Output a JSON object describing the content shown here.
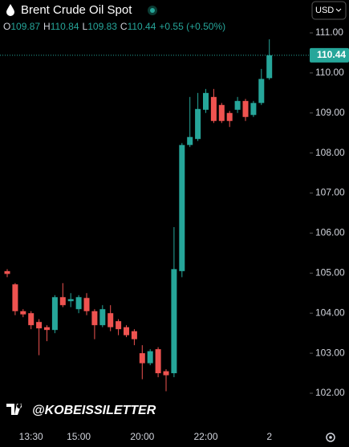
{
  "chart_data": {
    "type": "candlestick",
    "title": "Brent Crude Oil Spot",
    "currency": "USD",
    "ohlc_labels": [
      "O",
      "H",
      "L",
      "C"
    ],
    "change": "+0.55 (+0.50%)",
    "watermark": "@KOBEISSILETTER",
    "up_color": "#26a69a",
    "down_color": "#ef5350",
    "categories": [
      null,
      null,
      null,
      "13:30",
      null,
      null,
      null,
      null,
      null,
      "15:00",
      null,
      null,
      null,
      null,
      null,
      null,
      null,
      "20:00",
      null,
      null,
      null,
      null,
      null,
      null,
      null,
      "22:00",
      null,
      null,
      null,
      null,
      null,
      null,
      null,
      "2"
    ],
    "series": [
      {
        "name": "open",
        "values": [
          105.05,
          104.72,
          104.05,
          104.0,
          103.78,
          103.65,
          103.58,
          104.4,
          104.3,
          104.1,
          104.38,
          104.05,
          103.7,
          104.0,
          103.8,
          103.65,
          103.55,
          103.0,
          102.75,
          103.1,
          102.55,
          102.5,
          105.05,
          108.2,
          108.35,
          109.08,
          109.4,
          109.2,
          109.0,
          109.08,
          109.3,
          108.95,
          109.25,
          109.87
        ]
      },
      {
        "name": "high",
        "values": [
          105.1,
          104.75,
          104.1,
          104.05,
          103.85,
          103.7,
          104.45,
          104.75,
          104.5,
          104.45,
          104.5,
          104.1,
          104.2,
          104.2,
          103.85,
          103.7,
          103.6,
          103.2,
          103.1,
          103.15,
          102.6,
          106.15,
          108.25,
          109.4,
          109.5,
          109.6,
          109.6,
          109.25,
          109.05,
          109.4,
          109.35,
          109.3,
          110.1,
          110.84
        ]
      },
      {
        "name": "low",
        "values": [
          104.9,
          103.95,
          103.9,
          103.6,
          102.95,
          103.3,
          103.5,
          104.15,
          104.15,
          104.0,
          103.95,
          103.35,
          103.65,
          103.55,
          103.45,
          103.4,
          103.2,
          102.35,
          102.7,
          102.4,
          102.05,
          102.4,
          104.9,
          108.15,
          108.3,
          109.0,
          108.75,
          108.75,
          108.65,
          109.0,
          108.8,
          108.9,
          109.2,
          109.83
        ]
      },
      {
        "name": "close",
        "values": [
          104.98,
          104.05,
          103.97,
          103.7,
          103.62,
          103.58,
          104.4,
          104.2,
          104.35,
          104.4,
          104.05,
          103.7,
          104.1,
          103.65,
          103.6,
          103.45,
          103.35,
          102.75,
          103.05,
          102.5,
          102.45,
          105.1,
          108.2,
          108.4,
          109.1,
          109.5,
          108.8,
          108.8,
          108.8,
          109.3,
          108.9,
          109.25,
          109.85,
          110.44
        ]
      }
    ],
    "ylim": [
      101.8,
      111.82
    ],
    "yticks": [
      {
        "value": 102,
        "label": "102.00"
      },
      {
        "value": 103,
        "label": "103.00"
      },
      {
        "value": 104,
        "label": "104.00"
      },
      {
        "value": 105,
        "label": "105.00"
      },
      {
        "value": 106,
        "label": "106.00"
      },
      {
        "value": 107,
        "label": "107.00"
      },
      {
        "value": 108,
        "label": "108.00"
      },
      {
        "value": 109,
        "label": "109.00"
      },
      {
        "value": 110,
        "label": "110.00"
      },
      {
        "value": 111,
        "label": "111.00"
      }
    ]
  }
}
